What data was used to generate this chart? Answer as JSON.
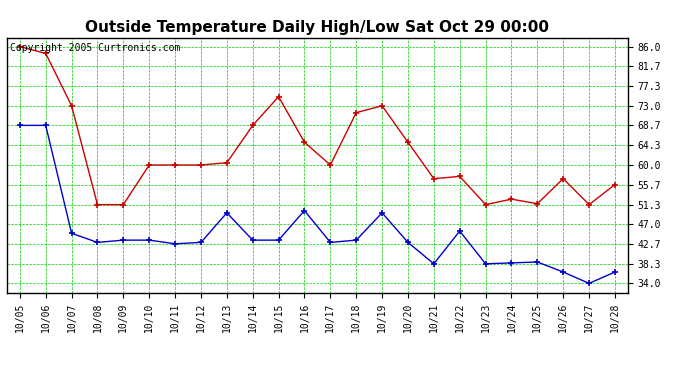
{
  "title": "Outside Temperature Daily High/Low Sat Oct 29 00:00",
  "copyright_text": "Copyright 2005 Curtronics.com",
  "x_labels": [
    "10/05",
    "10/06",
    "10/07",
    "10/08",
    "10/09",
    "10/10",
    "10/11",
    "10/12",
    "10/13",
    "10/14",
    "10/15",
    "10/16",
    "10/17",
    "10/18",
    "10/19",
    "10/20",
    "10/21",
    "10/22",
    "10/23",
    "10/24",
    "10/25",
    "10/26",
    "10/27",
    "10/28"
  ],
  "high_values": [
    86.0,
    84.5,
    73.0,
    51.3,
    51.3,
    60.0,
    60.0,
    60.0,
    60.5,
    68.7,
    75.0,
    65.0,
    60.0,
    71.5,
    73.0,
    65.0,
    57.0,
    57.5,
    51.3,
    52.5,
    51.5,
    57.0,
    51.3,
    55.7
  ],
  "low_values": [
    68.7,
    68.7,
    45.0,
    43.0,
    43.5,
    43.5,
    42.7,
    43.0,
    49.5,
    43.5,
    43.5,
    50.0,
    43.0,
    43.5,
    49.5,
    43.0,
    38.3,
    45.5,
    38.3,
    38.5,
    38.7,
    36.5,
    34.0,
    36.5
  ],
  "high_color": "#cc0000",
  "low_color": "#0000cc",
  "bg_color": "#ffffff",
  "plot_bg_color": "#ffffff",
  "grid_color": "#00cc00",
  "yticks": [
    34.0,
    38.3,
    42.7,
    47.0,
    51.3,
    55.7,
    60.0,
    64.3,
    68.7,
    73.0,
    77.3,
    81.7,
    86.0
  ],
  "ylim": [
    32.0,
    88.0
  ],
  "title_fontsize": 11,
  "tick_fontsize": 7,
  "copyright_fontsize": 7
}
